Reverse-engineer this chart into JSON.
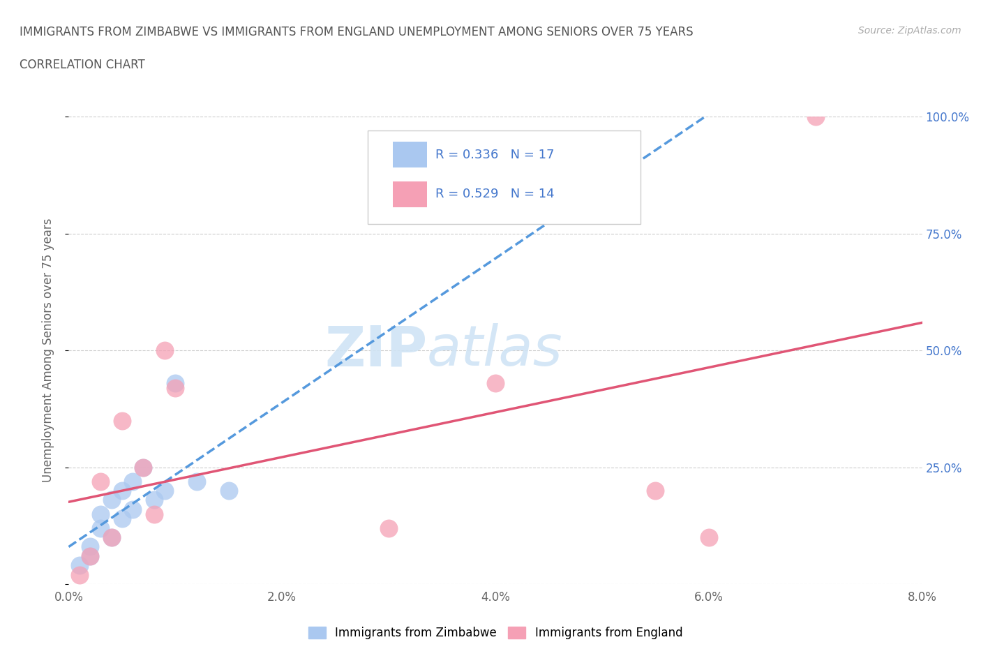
{
  "title_line1": "IMMIGRANTS FROM ZIMBABWE VS IMMIGRANTS FROM ENGLAND UNEMPLOYMENT AMONG SENIORS OVER 75 YEARS",
  "title_line2": "CORRELATION CHART",
  "source_text": "Source: ZipAtlas.com",
  "ylabel": "Unemployment Among Seniors over 75 years",
  "xlim": [
    0.0,
    0.08
  ],
  "ylim": [
    0.0,
    1.0
  ],
  "xtick_labels": [
    "0.0%",
    "2.0%",
    "4.0%",
    "6.0%",
    "8.0%"
  ],
  "xtick_vals": [
    0.0,
    0.02,
    0.04,
    0.06,
    0.08
  ],
  "ytick_vals": [
    0.0,
    0.25,
    0.5,
    0.75,
    1.0
  ],
  "ytick_labels_right": [
    "",
    "25.0%",
    "50.0%",
    "75.0%",
    "100.0%"
  ],
  "R_zimbabwe": 0.336,
  "N_zimbabwe": 17,
  "R_england": 0.529,
  "N_england": 14,
  "zimbabwe_x": [
    0.001,
    0.002,
    0.002,
    0.003,
    0.003,
    0.004,
    0.004,
    0.005,
    0.005,
    0.006,
    0.006,
    0.007,
    0.008,
    0.009,
    0.01,
    0.012,
    0.015
  ],
  "zimbabwe_y": [
    0.04,
    0.06,
    0.08,
    0.12,
    0.15,
    0.1,
    0.18,
    0.14,
    0.2,
    0.16,
    0.22,
    0.25,
    0.18,
    0.2,
    0.43,
    0.22,
    0.2
  ],
  "england_x": [
    0.001,
    0.002,
    0.003,
    0.004,
    0.005,
    0.007,
    0.008,
    0.009,
    0.01,
    0.03,
    0.04,
    0.055,
    0.07,
    0.06
  ],
  "england_y": [
    0.02,
    0.06,
    0.22,
    0.1,
    0.35,
    0.25,
    0.15,
    0.5,
    0.42,
    0.12,
    0.43,
    0.2,
    1.0,
    0.1
  ],
  "zimbabwe_color": "#aac8f0",
  "england_color": "#f5a0b5",
  "zimbabwe_line_color": "#5599dd",
  "england_line_color": "#e05575",
  "legend_box_color": "#ddeeff",
  "legend_text_color": "#4477cc",
  "watermark_color": "#d0e4f5",
  "background_color": "#ffffff",
  "grid_color": "#cccccc",
  "title_color": "#555555",
  "axis_label_color": "#666666"
}
